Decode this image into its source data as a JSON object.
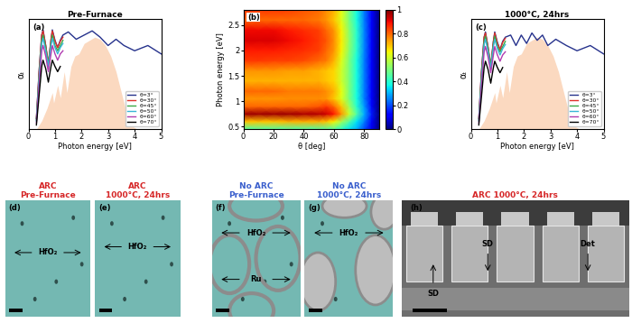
{
  "chart_data": [
    {
      "type": "line",
      "label": "(a)",
      "title": "Pre-Furnace",
      "x_label": "Photon energy [eV]",
      "y_label": "αₜ",
      "xlim": [
        0,
        5
      ],
      "xticks": [
        0,
        1,
        2,
        3,
        4,
        5
      ],
      "ylim": [
        0,
        1.05
      ],
      "tick_labels": "x",
      "legend": "lower right",
      "solar_spectrum": {
        "color": "#fbd9c0",
        "x": [
          0.3,
          0.5,
          0.7,
          0.9,
          0.95,
          1.1,
          1.2,
          1.35,
          1.45,
          1.6,
          1.75,
          1.9,
          2.1,
          2.3,
          2.5,
          2.7,
          2.9,
          3.1,
          3.3,
          3.5,
          3.7,
          3.9,
          4.1
        ],
        "values": [
          0,
          0.08,
          0.2,
          0.35,
          0.25,
          0.42,
          0.3,
          0.55,
          0.35,
          0.6,
          0.7,
          0.72,
          0.82,
          0.85,
          0.88,
          0.86,
          0.8,
          0.7,
          0.55,
          0.35,
          0.15,
          0.03,
          0
        ]
      },
      "series": [
        {
          "name": "θ=3°",
          "color": "#26328c",
          "x": [
            0.3,
            0.4,
            0.5,
            0.55,
            0.65,
            0.75,
            0.85,
            0.9,
            1.0,
            1.1,
            1.2,
            1.3,
            1.5,
            1.8,
            2.1,
            2.4,
            2.7,
            3.0,
            3.3,
            3.6,
            4.0,
            4.5,
            5.0
          ],
          "values": [
            0.1,
            0.55,
            0.9,
            0.95,
            0.8,
            0.62,
            0.85,
            0.95,
            0.85,
            0.78,
            0.85,
            0.9,
            0.93,
            0.86,
            0.9,
            0.94,
            0.88,
            0.8,
            0.86,
            0.8,
            0.75,
            0.8,
            0.72
          ]
        },
        {
          "name": "θ=30°",
          "color": "#e0302a",
          "x": [
            0.3,
            0.4,
            0.5,
            0.55,
            0.65,
            0.75,
            0.85,
            0.9,
            1.0,
            1.1,
            1.2,
            1.3
          ],
          "values": [
            0.1,
            0.55,
            0.9,
            0.94,
            0.8,
            0.63,
            0.86,
            0.94,
            0.84,
            0.78,
            0.84,
            0.88
          ]
        },
        {
          "name": "θ=45°",
          "color": "#3aa845",
          "x": [
            0.3,
            0.4,
            0.5,
            0.55,
            0.65,
            0.75,
            0.85,
            0.9,
            1.0,
            1.1,
            1.2,
            1.3
          ],
          "values": [
            0.08,
            0.5,
            0.85,
            0.9,
            0.78,
            0.62,
            0.82,
            0.9,
            0.8,
            0.75,
            0.8,
            0.85
          ]
        },
        {
          "name": "θ=50°",
          "color": "#38b6d6",
          "x": [
            0.3,
            0.4,
            0.5,
            0.55,
            0.65,
            0.75,
            0.85,
            0.9,
            1.0,
            1.1,
            1.2,
            1.3
          ],
          "values": [
            0.08,
            0.48,
            0.82,
            0.87,
            0.75,
            0.6,
            0.8,
            0.87,
            0.78,
            0.72,
            0.78,
            0.82
          ]
        },
        {
          "name": "θ=60°",
          "color": "#b03cb0",
          "x": [
            0.3,
            0.4,
            0.5,
            0.55,
            0.65,
            0.75,
            0.85,
            0.9,
            1.0,
            1.1,
            1.2,
            1.3
          ],
          "values": [
            0.06,
            0.42,
            0.75,
            0.8,
            0.7,
            0.55,
            0.72,
            0.8,
            0.72,
            0.66,
            0.72,
            0.75
          ]
        },
        {
          "name": "θ=70°",
          "color": "#000000",
          "x": [
            0.3,
            0.4,
            0.5,
            0.55,
            0.65,
            0.75,
            0.85,
            0.9,
            1.0,
            1.1,
            1.2
          ],
          "values": [
            0.04,
            0.32,
            0.6,
            0.66,
            0.58,
            0.45,
            0.6,
            0.66,
            0.6,
            0.55,
            0.6
          ]
        }
      ]
    },
    {
      "type": "heatmap",
      "label": "(b)",
      "x_label": "θ [deg]",
      "y_label": "Photon energy [eV]",
      "xlim": [
        0,
        90
      ],
      "xticks": [
        0,
        20,
        40,
        60,
        80
      ],
      "ylim": [
        0.45,
        2.8
      ],
      "yticks": [
        0.5,
        1,
        1.5,
        2,
        2.5
      ],
      "x": [
        0,
        10,
        20,
        30,
        40,
        50,
        55,
        60,
        65,
        70,
        75,
        80,
        85,
        90
      ],
      "y": [
        0.45,
        0.6,
        0.75,
        0.9,
        1.05,
        1.2,
        1.4,
        1.6,
        1.8,
        2.0,
        2.2,
        2.4,
        2.6,
        2.8
      ],
      "cells": [
        [
          0.45,
          0.45,
          0.45,
          0.45,
          0.45,
          0.45,
          0.45,
          0.45,
          0.4,
          0.35,
          0.3,
          0.2,
          0.1,
          0.0
        ],
        [
          0.7,
          0.7,
          0.7,
          0.72,
          0.72,
          0.72,
          0.7,
          0.65,
          0.55,
          0.45,
          0.35,
          0.25,
          0.12,
          0.0
        ],
        [
          0.97,
          0.97,
          0.97,
          0.97,
          0.96,
          0.95,
          0.93,
          0.88,
          0.75,
          0.6,
          0.45,
          0.3,
          0.15,
          0.0
        ],
        [
          0.8,
          0.8,
          0.8,
          0.8,
          0.8,
          0.82,
          0.85,
          0.8,
          0.7,
          0.55,
          0.4,
          0.28,
          0.13,
          0.0
        ],
        [
          0.75,
          0.75,
          0.75,
          0.76,
          0.76,
          0.76,
          0.75,
          0.7,
          0.62,
          0.5,
          0.38,
          0.25,
          0.12,
          0.0
        ],
        [
          0.8,
          0.8,
          0.8,
          0.78,
          0.78,
          0.78,
          0.76,
          0.72,
          0.63,
          0.5,
          0.38,
          0.25,
          0.12,
          0.0
        ],
        [
          0.72,
          0.72,
          0.72,
          0.72,
          0.72,
          0.72,
          0.7,
          0.68,
          0.6,
          0.5,
          0.38,
          0.25,
          0.12,
          0.0
        ],
        [
          0.75,
          0.75,
          0.75,
          0.74,
          0.74,
          0.72,
          0.7,
          0.68,
          0.6,
          0.5,
          0.38,
          0.25,
          0.12,
          0.0
        ],
        [
          0.85,
          0.85,
          0.84,
          0.84,
          0.83,
          0.8,
          0.78,
          0.72,
          0.62,
          0.5,
          0.38,
          0.25,
          0.12,
          0.0
        ],
        [
          0.88,
          0.88,
          0.88,
          0.87,
          0.86,
          0.84,
          0.8,
          0.75,
          0.65,
          0.52,
          0.4,
          0.26,
          0.12,
          0.0
        ],
        [
          0.92,
          0.92,
          0.92,
          0.9,
          0.88,
          0.85,
          0.82,
          0.76,
          0.66,
          0.53,
          0.4,
          0.26,
          0.12,
          0.0
        ],
        [
          0.9,
          0.9,
          0.9,
          0.88,
          0.86,
          0.84,
          0.8,
          0.75,
          0.65,
          0.52,
          0.4,
          0.26,
          0.12,
          0.0
        ],
        [
          0.8,
          0.8,
          0.8,
          0.8,
          0.8,
          0.78,
          0.75,
          0.7,
          0.62,
          0.5,
          0.38,
          0.25,
          0.12,
          0.0
        ],
        [
          0.85,
          0.85,
          0.85,
          0.84,
          0.82,
          0.8,
          0.76,
          0.72,
          0.63,
          0.5,
          0.38,
          0.25,
          0.12,
          0.0
        ]
      ],
      "colorbar_range": [
        0,
        1
      ],
      "colorbar_ticks": [
        0,
        0.2,
        0.4,
        0.6,
        0.8,
        1
      ]
    },
    {
      "type": "line",
      "label": "(c)",
      "title": "1000°C, 24hrs",
      "x_label": "Photon energy [eV]",
      "y_label": "αₜ",
      "xlim": [
        0,
        5
      ],
      "xticks": [
        0,
        1,
        2,
        3,
        4,
        5
      ],
      "ylim": [
        0,
        1.05
      ],
      "tick_labels": "x",
      "legend": "lower right",
      "solar_spectrum": {
        "color": "#fbd9c0",
        "x": [
          0.3,
          0.5,
          0.7,
          0.9,
          0.95,
          1.1,
          1.2,
          1.35,
          1.45,
          1.6,
          1.75,
          1.9,
          2.1,
          2.3,
          2.5,
          2.7,
          2.9,
          3.1,
          3.3,
          3.5,
          3.7,
          3.9,
          4.1
        ],
        "values": [
          0,
          0.08,
          0.2,
          0.35,
          0.25,
          0.42,
          0.3,
          0.55,
          0.35,
          0.6,
          0.7,
          0.72,
          0.82,
          0.85,
          0.88,
          0.86,
          0.8,
          0.7,
          0.55,
          0.35,
          0.15,
          0.03,
          0
        ]
      },
      "series": [
        {
          "name": "θ=3°",
          "color": "#26328c",
          "x": [
            0.3,
            0.4,
            0.5,
            0.55,
            0.65,
            0.75,
            0.85,
            0.9,
            1.0,
            1.1,
            1.2,
            1.3,
            1.5,
            1.7,
            1.9,
            2.1,
            2.3,
            2.5,
            2.7,
            2.9,
            3.2,
            3.6,
            4.0,
            4.5,
            5.0
          ],
          "values": [
            0.1,
            0.55,
            0.88,
            0.93,
            0.78,
            0.6,
            0.84,
            0.93,
            0.83,
            0.76,
            0.84,
            0.88,
            0.9,
            0.8,
            0.9,
            0.82,
            0.92,
            0.85,
            0.9,
            0.8,
            0.86,
            0.8,
            0.75,
            0.8,
            0.72
          ]
        },
        {
          "name": "θ=30°",
          "color": "#e0302a",
          "x": [
            0.3,
            0.4,
            0.5,
            0.55,
            0.65,
            0.75,
            0.85,
            0.9,
            1.0,
            1.1,
            1.2,
            1.3
          ],
          "values": [
            0.1,
            0.54,
            0.88,
            0.92,
            0.78,
            0.61,
            0.84,
            0.92,
            0.82,
            0.76,
            0.83,
            0.87
          ]
        },
        {
          "name": "θ=45°",
          "color": "#3aa845",
          "x": [
            0.3,
            0.4,
            0.5,
            0.55,
            0.65,
            0.75,
            0.85,
            0.9,
            1.0,
            1.1,
            1.2,
            1.3
          ],
          "values": [
            0.08,
            0.5,
            0.84,
            0.89,
            0.76,
            0.6,
            0.81,
            0.89,
            0.79,
            0.74,
            0.79,
            0.84
          ]
        },
        {
          "name": "θ=50°",
          "color": "#38b6d6",
          "x": [
            0.3,
            0.4,
            0.5,
            0.55,
            0.65,
            0.75,
            0.85,
            0.9,
            1.0,
            1.1,
            1.2,
            1.3
          ],
          "values": [
            0.08,
            0.47,
            0.81,
            0.86,
            0.74,
            0.58,
            0.79,
            0.86,
            0.77,
            0.71,
            0.77,
            0.81
          ]
        },
        {
          "name": "θ=60°",
          "color": "#b03cb0",
          "x": [
            0.3,
            0.4,
            0.5,
            0.55,
            0.65,
            0.75,
            0.85,
            0.9,
            1.0,
            1.1,
            1.2,
            1.3
          ],
          "values": [
            0.06,
            0.41,
            0.74,
            0.79,
            0.69,
            0.54,
            0.71,
            0.79,
            0.71,
            0.65,
            0.71,
            0.74
          ]
        },
        {
          "name": "θ=70°",
          "color": "#000000",
          "x": [
            0.3,
            0.4,
            0.5,
            0.55,
            0.65,
            0.75,
            0.85,
            0.9,
            1.0,
            1.1,
            1.2
          ],
          "values": [
            0.04,
            0.31,
            0.59,
            0.65,
            0.57,
            0.44,
            0.59,
            0.65,
            0.59,
            0.54,
            0.59
          ]
        }
      ]
    }
  ],
  "images": [
    {
      "label": "(d)",
      "title": "ARC\nPre-Furnace",
      "color": "#d62728",
      "annotations": [
        "HfO₂"
      ]
    },
    {
      "label": "(e)",
      "title": "ARC\n1000°C, 24hrs",
      "color": "#d62728",
      "annotations": [
        "HfO₂"
      ]
    },
    {
      "label": "(f)",
      "title": "No ARC\nPre-Furnace",
      "color": "#3a5fcd",
      "annotations": [
        "HfO₂",
        "Ru"
      ]
    },
    {
      "label": "(g)",
      "title": "No ARC\n1000°C, 24hrs",
      "color": "#3a5fcd",
      "annotations": [
        "HfO₂"
      ]
    },
    {
      "label": "(h)",
      "title": "ARC 1000°C, 24hrs",
      "color": "#d62728",
      "annotations": [
        "SD",
        "Det",
        "SD"
      ]
    }
  ]
}
